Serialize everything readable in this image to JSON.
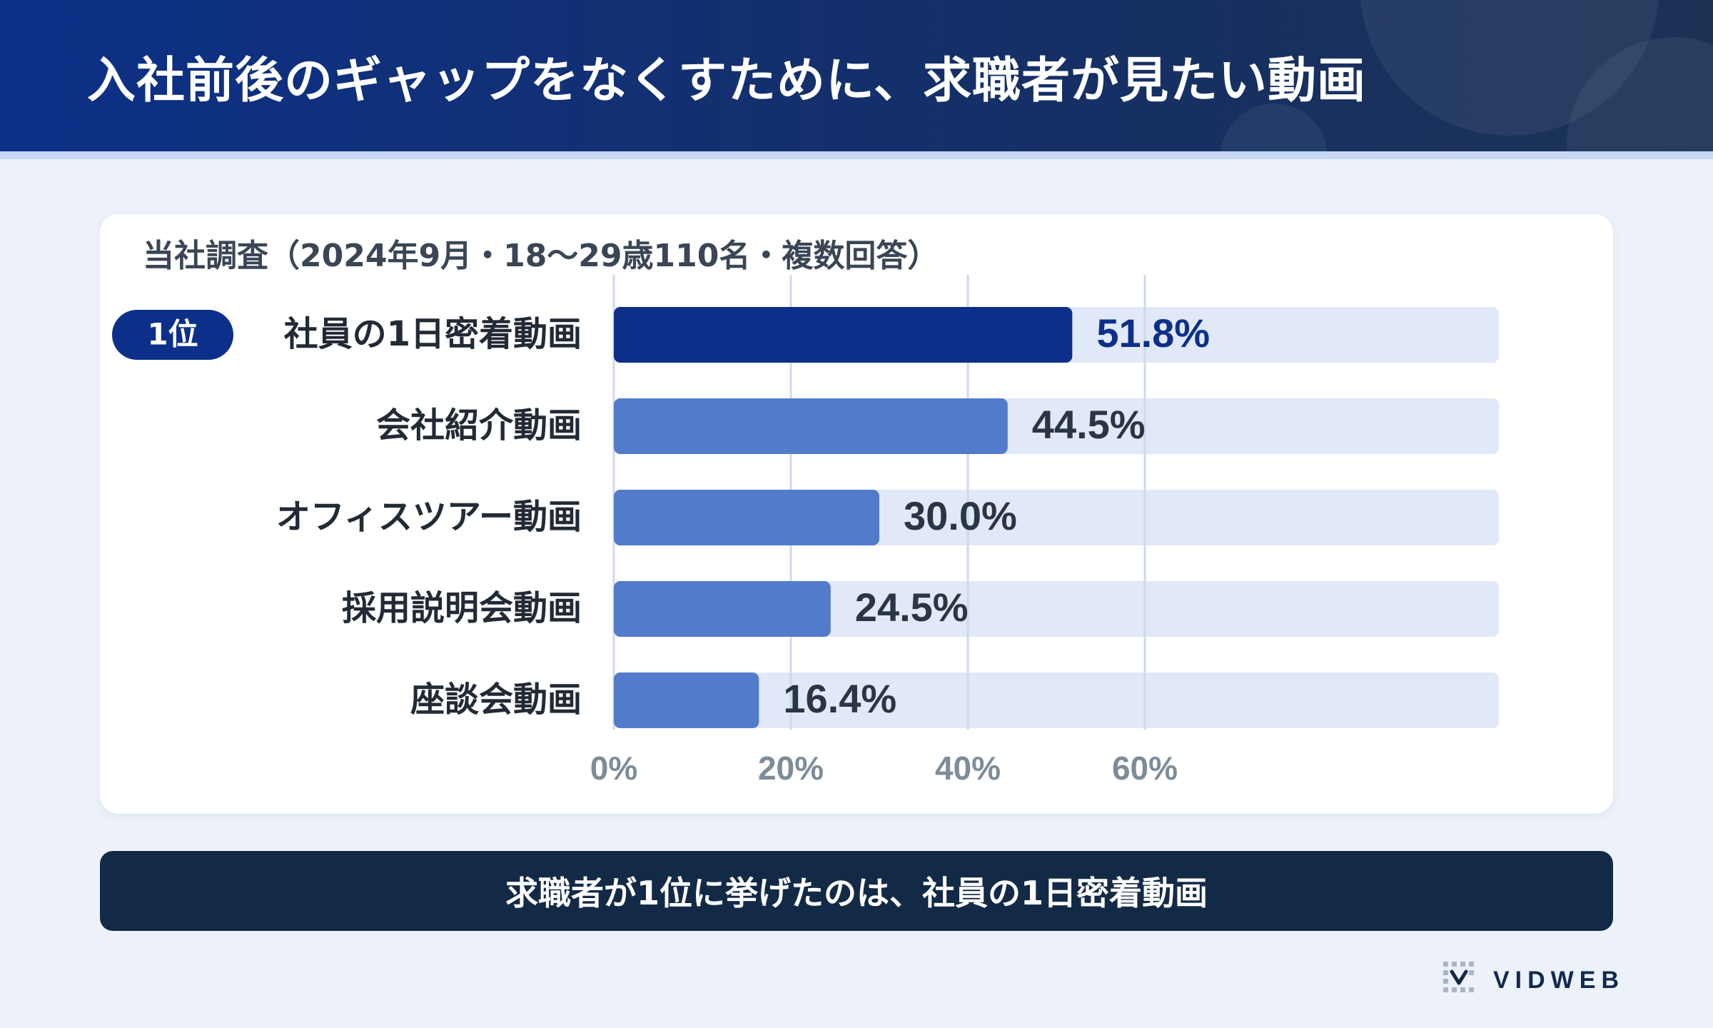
{
  "header": {
    "title": "入社前後のギャップをなくすために、求職者が見たい動画"
  },
  "survey_note": "当社調査（2024年9月・18〜29歳110名・複数回答）",
  "rank_badge": "1位",
  "summary_text": "求職者が1位に挙げたのは、社員の1日密着動画",
  "logo_text": "VIDWEB",
  "colors": {
    "top_bar": "#0c2f8a",
    "bar": "#527bcb",
    "track": "#e1e8f7",
    "top_value": "#0c2f8a",
    "value": "#2c3542",
    "tick": "#7e8c99",
    "grid": "#cdd9ee"
  },
  "chart_data": {
    "type": "bar",
    "orientation": "horizontal",
    "title": "入社前後のギャップをなくすために、求職者が見たい動画",
    "categories": [
      "社員の1日密着動画",
      "会社紹介動画",
      "オフィスツアー動画",
      "採用説明会動画",
      "座談会動画"
    ],
    "values": [
      51.8,
      44.5,
      30.0,
      24.5,
      16.4
    ],
    "value_labels": [
      "51.8%",
      "44.5%",
      "30.0%",
      "24.5%",
      "16.4%"
    ],
    "unit": "%",
    "xlim": [
      0,
      100
    ],
    "xticks": [
      0,
      20,
      40,
      60
    ],
    "xtick_labels": [
      "0%",
      "20%",
      "40%",
      "60%"
    ],
    "grid": true,
    "highlight_index": 0
  }
}
